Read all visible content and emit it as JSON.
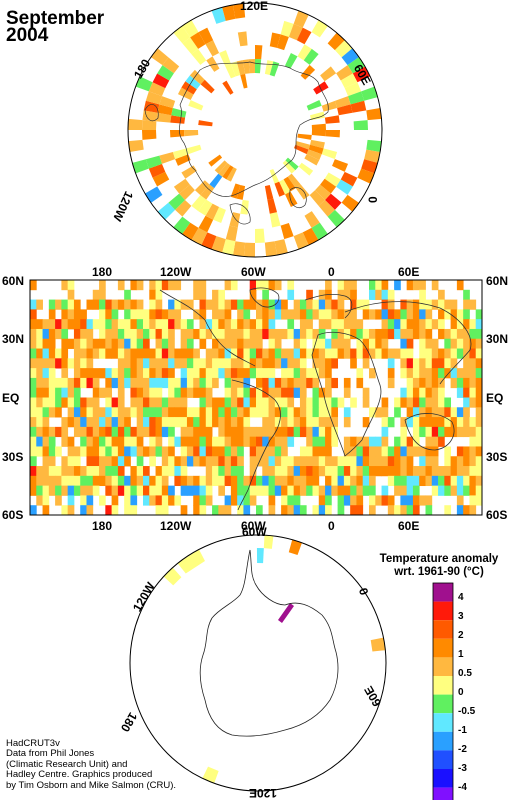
{
  "title_line1": "September",
  "title_line2": "2004",
  "north_pole_labels": {
    "top": "120E",
    "right": "60E",
    "left": "180",
    "lower_right": "0",
    "lower_left": "120W"
  },
  "mid_map": {
    "top_lon_labels": [
      "180",
      "120W",
      "60W",
      "0",
      "60E"
    ],
    "bottom_lon_labels": [
      "180",
      "120W",
      "60W",
      "0",
      "60E"
    ],
    "lat_labels": [
      "60N",
      "30N",
      "EQ",
      "30S",
      "60S"
    ]
  },
  "south_pole_labels": {
    "top": "60W",
    "right": "0",
    "left": "120W",
    "lower_left": "180",
    "lower_right": "60E",
    "bottom": "120E"
  },
  "legend": {
    "title_line1": "Temperature anomaly",
    "title_line2": "wrt. 1961-90  (°C)",
    "bins": [
      {
        "color": "#a0108e"
      },
      {
        "color": "#ff1a0a"
      },
      {
        "color": "#ff5a00"
      },
      {
        "color": "#ff8a00"
      },
      {
        "color": "#ffb840"
      },
      {
        "color": "#ffff80"
      },
      {
        "color": "#60f060"
      },
      {
        "color": "#60e8ff"
      },
      {
        "color": "#2aa0ff"
      },
      {
        "color": "#2050ff"
      },
      {
        "color": "#1a10ff"
      },
      {
        "color": "#8010ff"
      }
    ],
    "labels": [
      "4",
      "3",
      "2",
      "1",
      "0.5",
      "0",
      "-0.5",
      "-1",
      "-2",
      "-3",
      "-4"
    ]
  },
  "credits": [
    "HadCRUT3v",
    "Data from Phil Jones",
    "(Climatic Research Unit) and",
    "Hadley Centre.  Graphics produced",
    "by Tim Osborn and Mike Salmon (CRU)."
  ]
}
